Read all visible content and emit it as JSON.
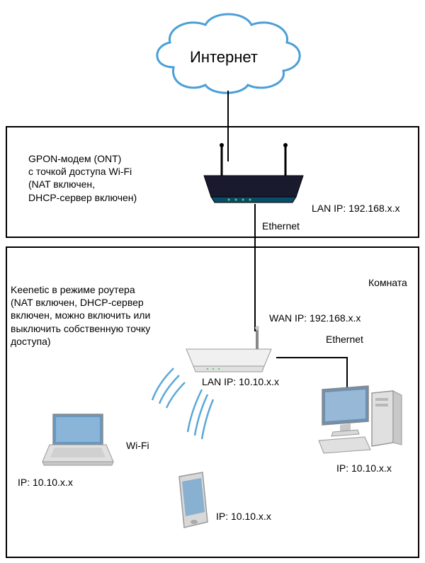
{
  "diagram": {
    "type": "network",
    "background_color": "#ffffff",
    "cloud": {
      "label": "Интернет",
      "stroke_color": "#4a9fd8",
      "fill_color": "#ffffff",
      "label_fontsize": 22,
      "label_color": "#000000"
    },
    "section1": {
      "border_color": "#000000",
      "device_label": "GPON-модем (ONT)\nс точкой доступа Wi-Fi\n(NAT включен,\nDHCP-сервер включен)",
      "lan_ip_label": "LAN IP: 192.168.x.x",
      "ethernet_label": "Ethernet",
      "router_color_body": "#1a1a2e",
      "router_color_front": "#0a4d6b",
      "antenna_color": "#000000"
    },
    "section2": {
      "border_color": "#000000",
      "room_label": "Комната",
      "device_label": "Keenetic в режиме роутера\n(NAT включен, DHCP-сервер\nвключен, можно включить или\nвыключить собственную точку\nдоступа)",
      "wan_ip_label": "WAN IP: 192.168.x.x",
      "lan_ip_label": "LAN IP: 10.10.x.x",
      "ethernet_label": "Ethernet",
      "wifi_label": "Wi-Fi",
      "router_color": "#e8e8e8",
      "router_antenna_color": "#ffffff",
      "laptop_ip": "IP: 10.10.x.x",
      "phone_ip": "IP: 10.10.x.x",
      "pc_ip": "IP: 10.10.x.x",
      "wifi_signal_color": "#5aa8d8"
    },
    "devices": {
      "laptop": {
        "body_color": "#d8d8d8",
        "screen_color": "#6898c0"
      },
      "phone": {
        "body_color": "#d0d0d0",
        "screen_color": "#88b0d0"
      },
      "pc": {
        "monitor_color": "#7090b0",
        "tower_color": "#d8d8d8",
        "keyboard_color": "#d8d8d8"
      }
    },
    "label_fontsize": 14,
    "text_color": "#000000"
  }
}
